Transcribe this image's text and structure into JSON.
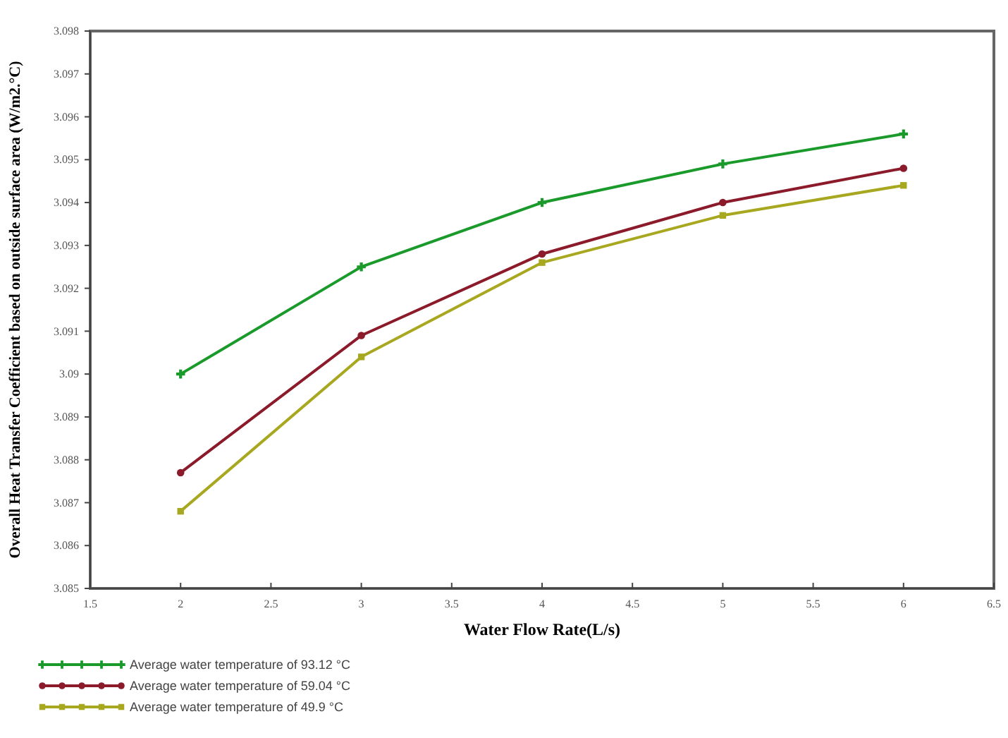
{
  "chart_data": {
    "type": "line",
    "xlabel": "Water Flow Rate(L/s)",
    "ylabel": "Overall Heat Transfer Coefficient based on outside surface area (W/m2.°C)",
    "x": [
      2,
      3,
      4,
      5,
      6
    ],
    "series": [
      {
        "name": "Average water temperature of 93.12 °C",
        "color": "#1a9a2a",
        "marker": "cross",
        "values": [
          3.09,
          3.0925,
          3.094,
          3.0949,
          3.0956
        ]
      },
      {
        "name": "Average water temperature of 59.04 °C",
        "color": "#8b1a2a",
        "marker": "circle",
        "values": [
          3.0877,
          3.0909,
          3.0928,
          3.094,
          3.0948
        ]
      },
      {
        "name": "Average water temperature of 49.9 °C",
        "color": "#a8a820",
        "marker": "square",
        "values": [
          3.0868,
          3.0904,
          3.0926,
          3.0937,
          3.0944
        ]
      }
    ],
    "xlim": [
      1.5,
      6.5
    ],
    "xticks": [
      1.5,
      2,
      2.5,
      3,
      3.5,
      4,
      4.5,
      5,
      5.5,
      6,
      6.5
    ],
    "ylim": [
      3.085,
      3.098
    ],
    "yticks": [
      3.085,
      3.086,
      3.087,
      3.088,
      3.089,
      3.09,
      3.091,
      3.092,
      3.093,
      3.094,
      3.095,
      3.096,
      3.097,
      3.098
    ],
    "grid": false,
    "legend": "bottom left",
    "line_style": "solid"
  }
}
